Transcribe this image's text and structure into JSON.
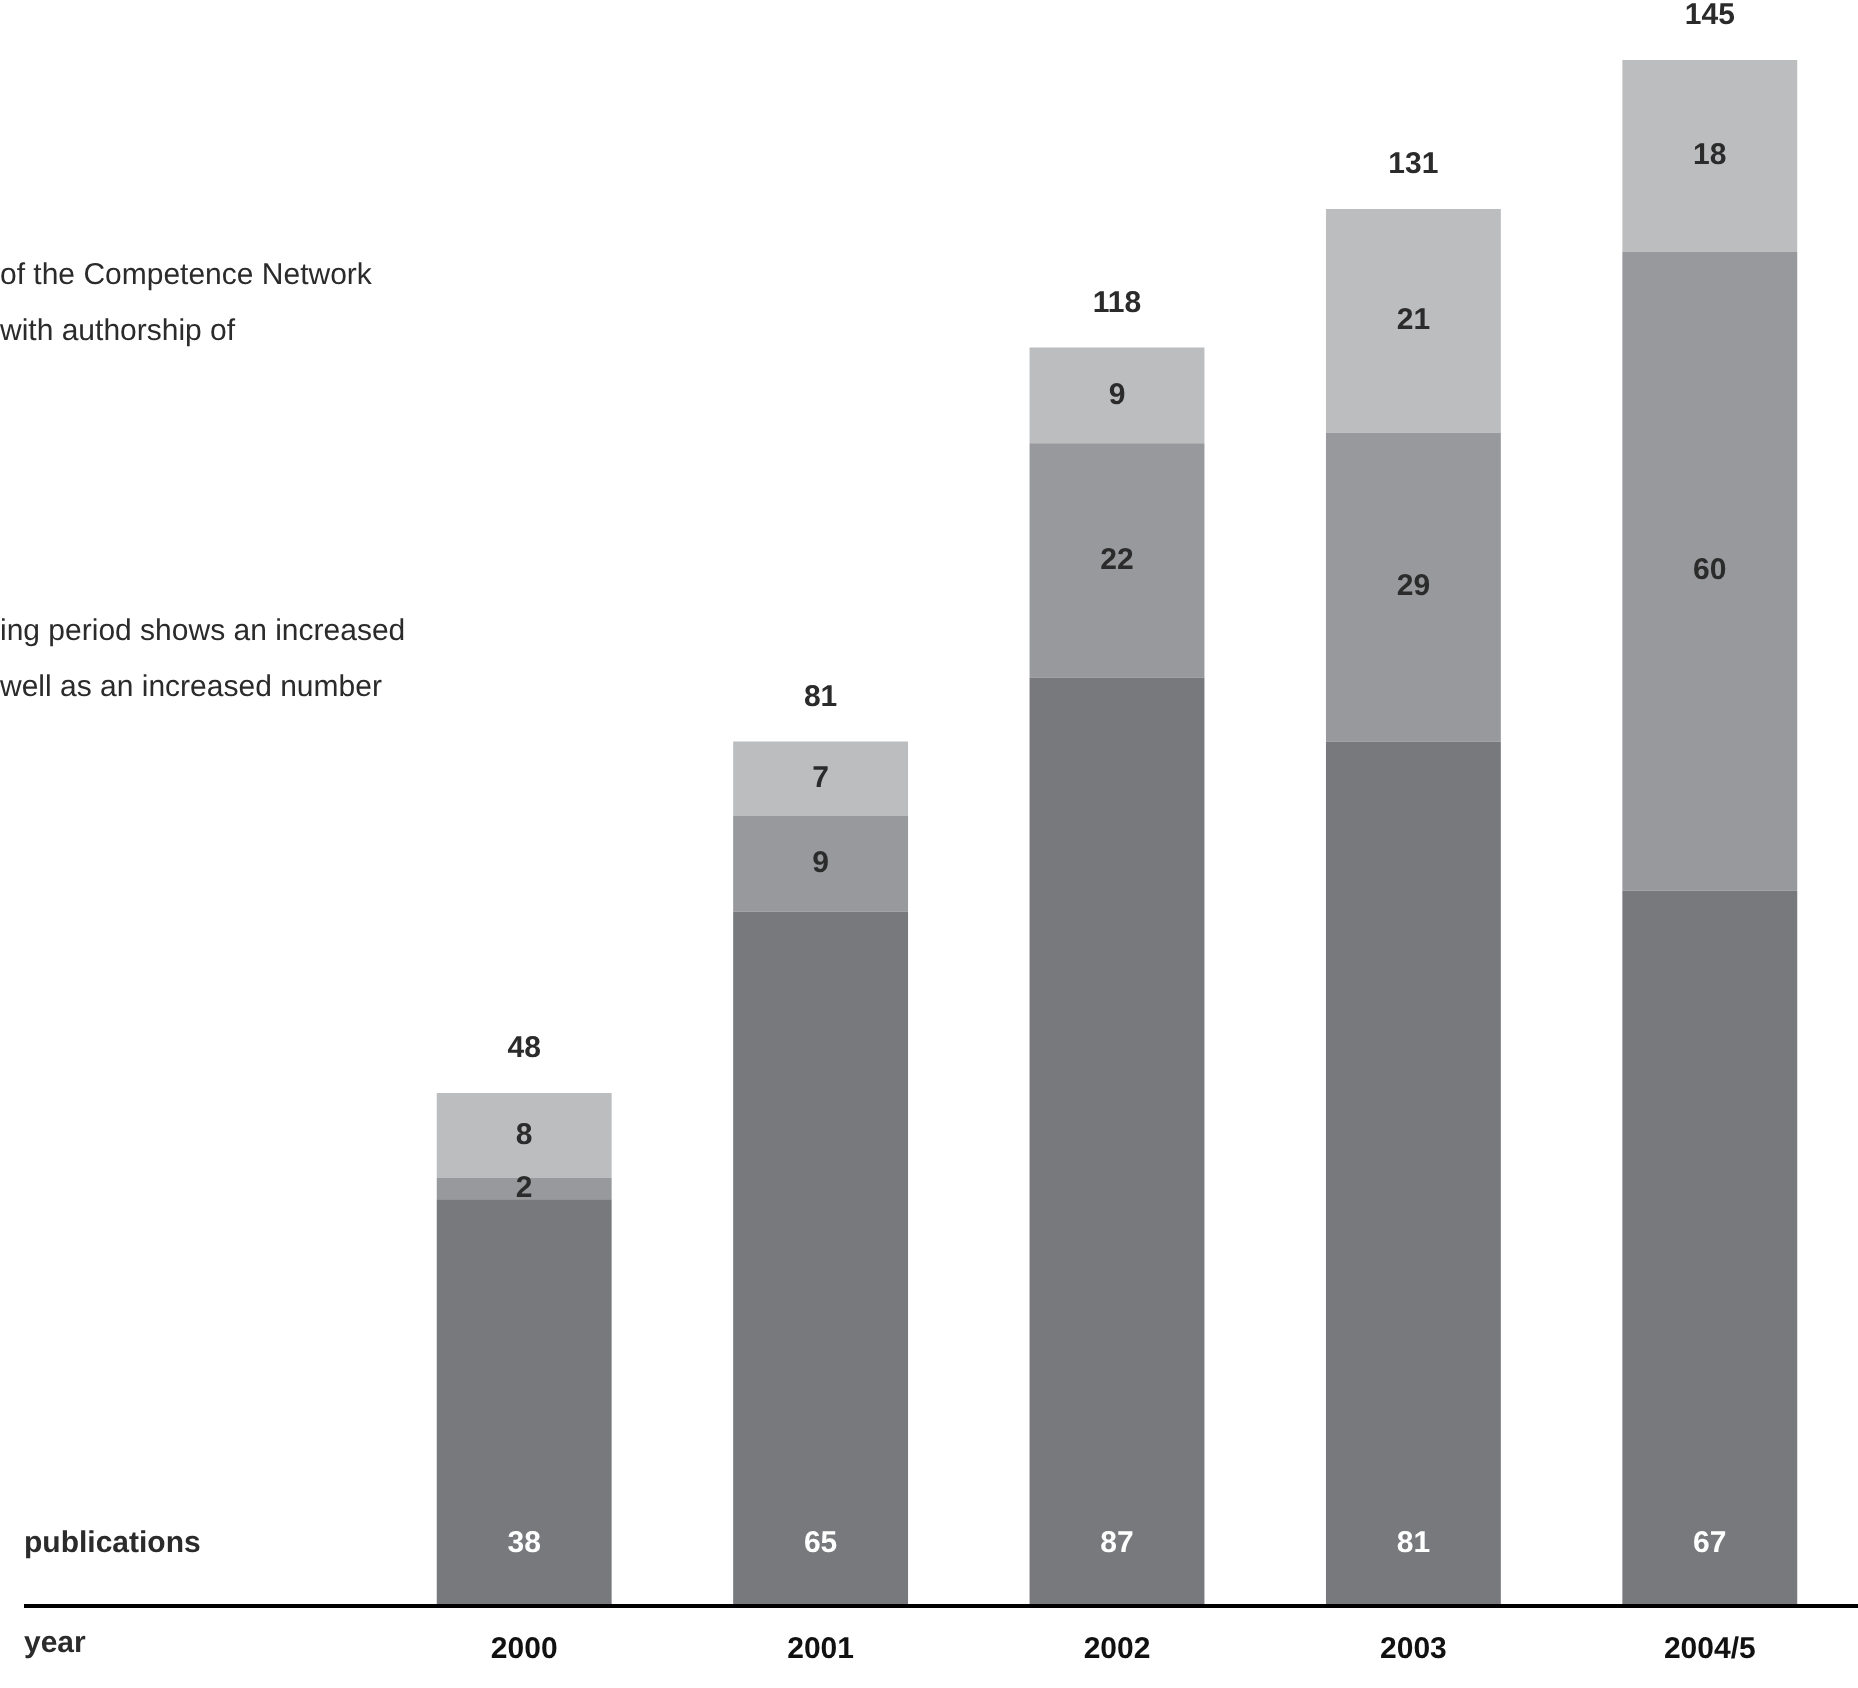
{
  "chart_data": {
    "type": "bar",
    "stacked": true,
    "categories": [
      "2000",
      "2001",
      "2002",
      "2003",
      "2004/5"
    ],
    "series": [
      {
        "color": "#78797d",
        "values": [
          38,
          65,
          87,
          81,
          67
        ]
      },
      {
        "color": "#98999d",
        "values": [
          2,
          9,
          22,
          29,
          60
        ]
      },
      {
        "color": "#bcbdbf",
        "values": [
          8,
          7,
          9,
          21,
          18
        ]
      }
    ],
    "totals": [
      "48",
      "81",
      "118",
      "131",
      "145"
    ],
    "data_labels": true,
    "ylim": [
      0,
      145
    ],
    "tick_labels": "x",
    "grid": false,
    "legend": false,
    "annotations": [
      "of the Competence Network",
      "with authorship of",
      "ing period shows an increased",
      "well as an increased number",
      "publications",
      "year"
    ]
  }
}
